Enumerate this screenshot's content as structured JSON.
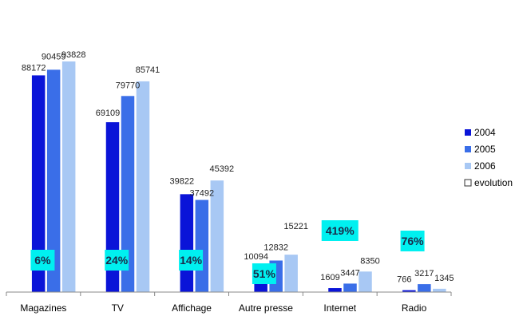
{
  "chart_data": {
    "type": "bar",
    "categories": [
      "Magazines",
      "TV",
      "Affichage",
      "Autre presse",
      "Internet",
      "Radio"
    ],
    "series": [
      {
        "name": "2004",
        "color": "#0a14d8",
        "values": [
          88172,
          69109,
          39822,
          10094,
          1609,
          766
        ]
      },
      {
        "name": "2005",
        "color": "#3a6ee8",
        "values": [
          90459,
          79770,
          37492,
          12832,
          3447,
          3217
        ]
      },
      {
        "name": "2006",
        "color": "#a8c8f4",
        "values": [
          93828,
          85741,
          45392,
          15221,
          8350,
          1345
        ]
      }
    ],
    "evolution": {
      "name": "evolution",
      "labels": [
        "6%",
        "24%",
        "14%",
        "51%",
        "419%",
        "76%"
      ],
      "color": "#00f0f0"
    },
    "legend_position": "right",
    "ylim": [
      0,
      100000
    ],
    "grid": false
  }
}
